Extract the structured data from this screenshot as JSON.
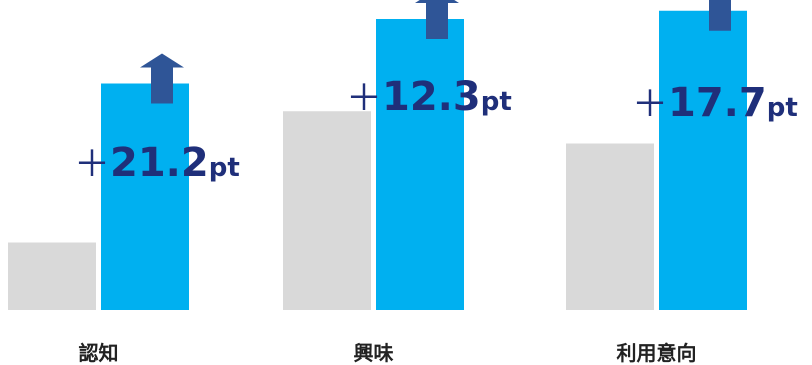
{
  "chart_data": {
    "type": "bar",
    "categories": [
      "認知",
      "興味",
      "利用意向"
    ],
    "series": [
      {
        "values": [
          9.0,
          26.5,
          22.2
        ]
      },
      {
        "values": [
          30.2,
          38.8,
          39.9
        ]
      }
    ],
    "ylim": [
      0,
      40
    ],
    "grid": false,
    "legend": "none",
    "annotations": [
      {
        "category": "認知",
        "plus": "＋",
        "number": "21.2",
        "unit": "pt",
        "icon": "up-arrow-icon"
      },
      {
        "category": "興味",
        "plus": "＋",
        "number": "12.3",
        "unit": "pt",
        "icon": "up-arrow-icon"
      },
      {
        "category": "利用意向",
        "plus": "＋",
        "number": "17.7",
        "unit": "pt",
        "icon": "up-arrow-icon"
      }
    ]
  },
  "colors": {
    "before": "#d9d9d9",
    "after": "#00b0f0",
    "arrow": "#2f5597",
    "delta_text": "#1f2f7a",
    "category_text": "#222222"
  }
}
